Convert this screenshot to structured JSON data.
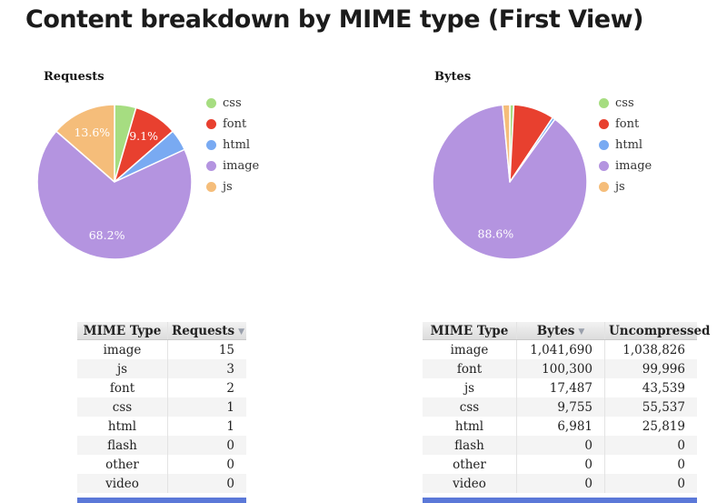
{
  "page": {
    "title": "Content breakdown by MIME type (First View)"
  },
  "icons": {
    "sort_desc": "▼"
  },
  "colors": {
    "bottom_bar": "#5b78d8",
    "slice_border": "#ffffff"
  },
  "chart_data": [
    {
      "id": "requests-pie",
      "type": "pie",
      "title": "Requests",
      "legend_position": "right",
      "labels": [
        "css",
        "font",
        "html",
        "image",
        "js"
      ],
      "values": [
        1,
        2,
        1,
        15,
        3
      ],
      "pcts": [
        4.5,
        9.1,
        4.5,
        68.2,
        13.6
      ],
      "colors": [
        "#a6dd81",
        "#e8402f",
        "#79aaf2",
        "#b494e0",
        "#f5bd7a"
      ],
      "shown_labels": [
        null,
        "9.1%",
        null,
        "68.2%",
        "13.6%"
      ]
    },
    {
      "id": "bytes-pie",
      "type": "pie",
      "title": "Bytes",
      "legend_position": "right",
      "labels": [
        "css",
        "font",
        "html",
        "image",
        "js"
      ],
      "values": [
        9755,
        100300,
        6981,
        1041690,
        17487
      ],
      "pcts": [
        0.83,
        8.53,
        0.59,
        88.56,
        1.49
      ],
      "colors": [
        "#a6dd81",
        "#e8402f",
        "#79aaf2",
        "#b494e0",
        "#f5bd7a"
      ],
      "shown_labels": [
        null,
        null,
        null,
        "88.6%",
        null
      ]
    },
    {
      "id": "requests-table",
      "type": "table",
      "columns": [
        "MIME Type",
        "Requests"
      ],
      "sorted_column": "Requests",
      "rows": [
        [
          "image",
          "15"
        ],
        [
          "js",
          "3"
        ],
        [
          "font",
          "2"
        ],
        [
          "css",
          "1"
        ],
        [
          "html",
          "1"
        ],
        [
          "flash",
          "0"
        ],
        [
          "other",
          "0"
        ],
        [
          "video",
          "0"
        ]
      ]
    },
    {
      "id": "bytes-table",
      "type": "table",
      "columns": [
        "MIME Type",
        "Bytes",
        "Uncompressed"
      ],
      "sorted_column": "Bytes",
      "rows": [
        [
          "image",
          "1,041,690",
          "1,038,826"
        ],
        [
          "font",
          "100,300",
          "99,996"
        ],
        [
          "js",
          "17,487",
          "43,539"
        ],
        [
          "css",
          "9,755",
          "55,537"
        ],
        [
          "html",
          "6,981",
          "25,819"
        ],
        [
          "flash",
          "0",
          "0"
        ],
        [
          "other",
          "0",
          "0"
        ],
        [
          "video",
          "0",
          "0"
        ]
      ]
    }
  ]
}
